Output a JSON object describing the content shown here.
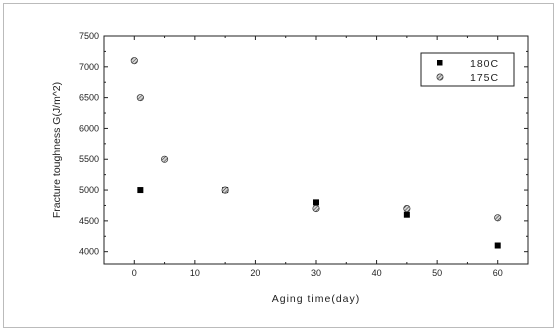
{
  "chart_data": {
    "type": "scatter",
    "title": "",
    "xlabel": "Aging time(day)",
    "ylabel": "Fracture toughness G(J/m^2)",
    "xlim": [
      -5,
      65
    ],
    "ylim": [
      3800,
      7500
    ],
    "x_ticks": [
      0,
      10,
      20,
      30,
      40,
      50,
      60
    ],
    "y_ticks": [
      4000,
      4500,
      5000,
      5500,
      6000,
      6500,
      7000,
      7500
    ],
    "x_tick_labels": [
      "0",
      "10",
      "20",
      "30",
      "40",
      "50",
      "60"
    ],
    "y_tick_labels": [
      "4000",
      "4500",
      "5000",
      "5500",
      "6000",
      "6500",
      "7000",
      "7500"
    ],
    "grid": false,
    "legend_position": "top-right",
    "series": [
      {
        "name": "180C",
        "marker": "square",
        "color": "#000000",
        "x": [
          1,
          15,
          30,
          45,
          60
        ],
        "y": [
          5000,
          5000,
          4800,
          4600,
          4100
        ]
      },
      {
        "name": "175C",
        "marker": "circle-hatched",
        "color": "#555555",
        "x": [
          0,
          1,
          5,
          15,
          30,
          45,
          60
        ],
        "y": [
          7100,
          6500,
          5500,
          5000,
          4700,
          4700,
          4550
        ]
      }
    ]
  }
}
